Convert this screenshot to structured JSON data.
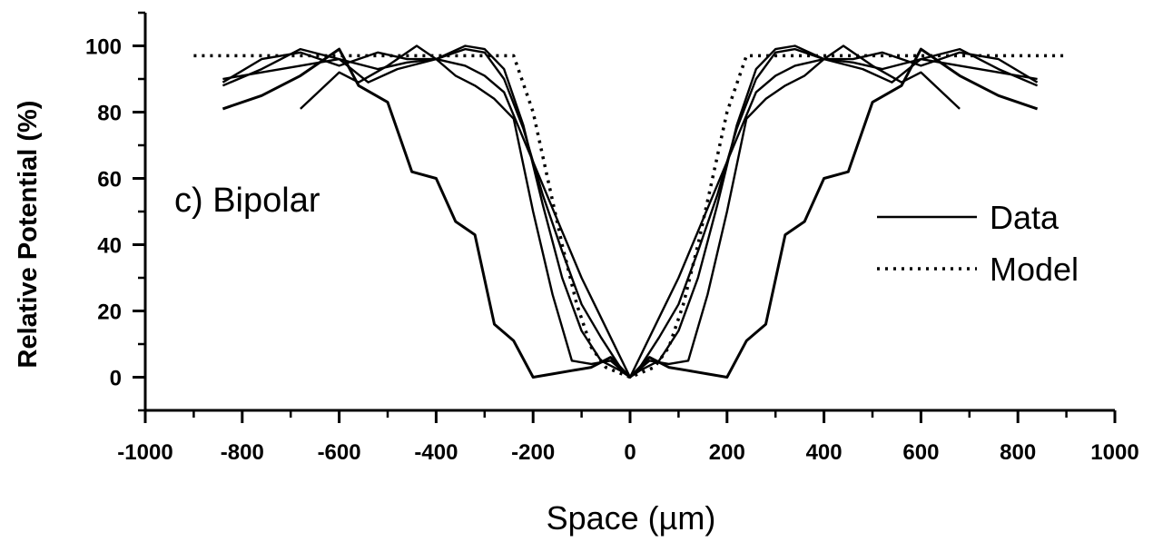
{
  "chart_data": {
    "type": "line",
    "annotation": "c) Bipolar",
    "xlabel": "Space (µm)",
    "ylabel": "Relative Potential (%)",
    "xlim": [
      -1000,
      1000
    ],
    "ylim": [
      -10,
      110
    ],
    "x_ticks": [
      -1000,
      -800,
      -600,
      -400,
      -200,
      0,
      200,
      400,
      600,
      800,
      1000
    ],
    "x_tick_labels": [
      "-1000",
      "-800",
      "-600",
      "-400",
      "-200",
      "0",
      "200",
      "400",
      "600",
      "800",
      "1000"
    ],
    "y_ticks": [
      0,
      20,
      40,
      60,
      80,
      100
    ],
    "y_tick_labels": [
      "0",
      "20",
      "40",
      "60",
      "80",
      "100"
    ],
    "legend": {
      "position": "right",
      "entries": [
        {
          "label": "Data",
          "style": "solid"
        },
        {
          "label": "Model",
          "style": "dotted"
        }
      ]
    },
    "series": [
      {
        "style": "solid",
        "points": [
          [
            -840,
            81
          ],
          [
            -760,
            85
          ],
          [
            -680,
            91
          ],
          [
            -600,
            99
          ],
          [
            -560,
            88
          ],
          [
            -500,
            83
          ],
          [
            -450,
            62
          ],
          [
            -400,
            60
          ],
          [
            -360,
            47
          ],
          [
            -320,
            43
          ],
          [
            -280,
            16
          ],
          [
            -240,
            11
          ],
          [
            -200,
            0
          ],
          [
            -160,
            1
          ],
          [
            -120,
            2
          ],
          [
            -80,
            3
          ],
          [
            -40,
            6
          ],
          [
            0,
            0
          ],
          [
            40,
            6
          ],
          [
            80,
            3
          ],
          [
            120,
            2
          ],
          [
            160,
            1
          ],
          [
            200,
            0
          ],
          [
            240,
            11
          ],
          [
            280,
            16
          ],
          [
            320,
            43
          ],
          [
            360,
            47
          ],
          [
            400,
            60
          ],
          [
            450,
            62
          ],
          [
            500,
            83
          ],
          [
            560,
            88
          ],
          [
            600,
            99
          ],
          [
            680,
            91
          ],
          [
            760,
            85
          ],
          [
            840,
            81
          ]
        ]
      },
      {
        "style": "solid",
        "points": [
          [
            -680,
            81
          ],
          [
            -600,
            92
          ],
          [
            -560,
            89
          ],
          [
            -500,
            94
          ],
          [
            -440,
            100
          ],
          [
            -400,
            96
          ],
          [
            -360,
            91
          ],
          [
            -320,
            88
          ],
          [
            -280,
            84
          ],
          [
            -240,
            78
          ],
          [
            -200,
            50
          ],
          [
            -160,
            25
          ],
          [
            -120,
            5
          ],
          [
            -80,
            4
          ],
          [
            -40,
            5
          ],
          [
            0,
            0
          ],
          [
            40,
            5
          ],
          [
            80,
            4
          ],
          [
            120,
            5
          ],
          [
            160,
            25
          ],
          [
            200,
            50
          ],
          [
            240,
            78
          ],
          [
            280,
            84
          ],
          [
            320,
            88
          ],
          [
            360,
            91
          ],
          [
            400,
            96
          ],
          [
            440,
            100
          ],
          [
            500,
            94
          ],
          [
            560,
            89
          ],
          [
            600,
            92
          ],
          [
            680,
            81
          ]
        ]
      },
      {
        "style": "solid",
        "points": [
          [
            -840,
            88
          ],
          [
            -760,
            93
          ],
          [
            -680,
            99
          ],
          [
            -600,
            96
          ],
          [
            -540,
            89
          ],
          [
            -480,
            93
          ],
          [
            -400,
            96
          ],
          [
            -340,
            100
          ],
          [
            -300,
            99
          ],
          [
            -260,
            93
          ],
          [
            -220,
            76
          ],
          [
            -180,
            52
          ],
          [
            -140,
            30
          ],
          [
            -100,
            14
          ],
          [
            -60,
            5
          ],
          [
            -20,
            2
          ],
          [
            0,
            0
          ],
          [
            20,
            2
          ],
          [
            60,
            5
          ],
          [
            100,
            14
          ],
          [
            140,
            30
          ],
          [
            180,
            52
          ],
          [
            220,
            76
          ],
          [
            260,
            93
          ],
          [
            300,
            99
          ],
          [
            340,
            100
          ],
          [
            400,
            96
          ],
          [
            480,
            93
          ],
          [
            540,
            89
          ],
          [
            600,
            96
          ],
          [
            680,
            99
          ],
          [
            760,
            93
          ],
          [
            840,
            88
          ]
        ]
      },
      {
        "style": "solid",
        "points": [
          [
            -840,
            89
          ],
          [
            -760,
            96
          ],
          [
            -680,
            98
          ],
          [
            -600,
            94
          ],
          [
            -520,
            98
          ],
          [
            -460,
            96
          ],
          [
            -400,
            96
          ],
          [
            -340,
            99
          ],
          [
            -300,
            98
          ],
          [
            -260,
            90
          ],
          [
            -220,
            75
          ],
          [
            -180,
            55
          ],
          [
            -140,
            38
          ],
          [
            -100,
            22
          ],
          [
            -60,
            12
          ],
          [
            -20,
            3
          ],
          [
            0,
            0
          ],
          [
            20,
            3
          ],
          [
            60,
            12
          ],
          [
            100,
            22
          ],
          [
            140,
            38
          ],
          [
            180,
            55
          ],
          [
            220,
            75
          ],
          [
            260,
            90
          ],
          [
            300,
            98
          ],
          [
            340,
            99
          ],
          [
            400,
            96
          ],
          [
            460,
            96
          ],
          [
            520,
            98
          ],
          [
            600,
            94
          ],
          [
            680,
            98
          ],
          [
            760,
            96
          ],
          [
            840,
            89
          ]
        ]
      },
      {
        "style": "solid",
        "points": [
          [
            -840,
            90
          ],
          [
            -760,
            92
          ],
          [
            -680,
            94
          ],
          [
            -600,
            96
          ],
          [
            -520,
            93
          ],
          [
            -460,
            95
          ],
          [
            -400,
            96
          ],
          [
            -340,
            94
          ],
          [
            -300,
            91
          ],
          [
            -260,
            86
          ],
          [
            -220,
            72
          ],
          [
            -180,
            58
          ],
          [
            -140,
            44
          ],
          [
            -100,
            30
          ],
          [
            -60,
            18
          ],
          [
            -20,
            6
          ],
          [
            0,
            0
          ],
          [
            20,
            6
          ],
          [
            60,
            18
          ],
          [
            100,
            30
          ],
          [
            140,
            44
          ],
          [
            180,
            58
          ],
          [
            220,
            72
          ],
          [
            260,
            86
          ],
          [
            300,
            91
          ],
          [
            340,
            94
          ],
          [
            400,
            96
          ],
          [
            460,
            95
          ],
          [
            520,
            93
          ],
          [
            600,
            96
          ],
          [
            680,
            94
          ],
          [
            760,
            92
          ],
          [
            840,
            90
          ]
        ]
      },
      {
        "style": "dotted",
        "points": [
          [
            -900,
            97
          ],
          [
            -240,
            97
          ],
          [
            -200,
            80
          ],
          [
            -170,
            60
          ],
          [
            -140,
            40
          ],
          [
            -110,
            22
          ],
          [
            -80,
            9
          ],
          [
            -50,
            3
          ],
          [
            0,
            0
          ],
          [
            50,
            3
          ],
          [
            80,
            9
          ],
          [
            110,
            22
          ],
          [
            140,
            40
          ],
          [
            170,
            60
          ],
          [
            200,
            80
          ],
          [
            240,
            97
          ],
          [
            900,
            97
          ]
        ]
      }
    ]
  }
}
